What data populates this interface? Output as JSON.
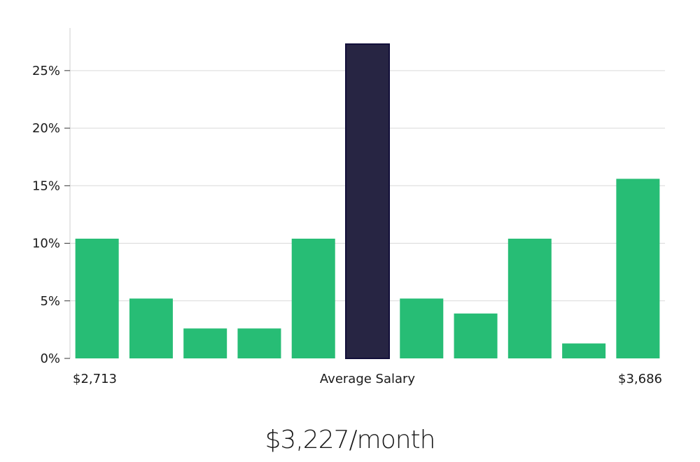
{
  "chart_data": {
    "type": "bar",
    "title": "",
    "xlabel": "",
    "ylabel": "",
    "ylim": [
      0,
      28.7
    ],
    "yticks": [
      0,
      5,
      10,
      15,
      20,
      25
    ],
    "ytick_labels": [
      "0%",
      "5%",
      "10%",
      "15%",
      "20%",
      "25%"
    ],
    "grid": true,
    "values": [
      10.4,
      5.2,
      2.6,
      2.6,
      10.4,
      27.3,
      5.2,
      3.9,
      10.4,
      1.3,
      15.6
    ],
    "highlight_index": 5,
    "x_labels": {
      "min": "$2,713",
      "center": "Average Salary",
      "max": "$3,686"
    }
  },
  "summary": "$3,227/month",
  "colors": {
    "bar": "#27bd75",
    "highlight": "#272543",
    "highlight_stroke": "#120f3a",
    "grid": "#d9d9d9",
    "axis": "#cfcfcf"
  }
}
